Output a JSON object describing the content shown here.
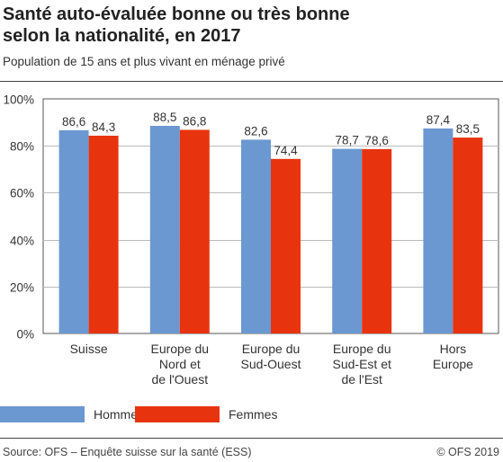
{
  "title_lines": [
    "Santé auto-évaluée bonne ou très bonne",
    "selon la nationalité, en 2017"
  ],
  "subtitle": "Population de 15 ans et plus vivant en ménage privé",
  "source": "Source: OFS – Enquête suisse sur la santé (ESS)",
  "copyright": "© OFS 2019",
  "colors": {
    "hommes": "#6b98d1",
    "femmes": "#e8340e",
    "plot_bg": "#ffffff",
    "grid": "#bbbbbb"
  },
  "chart_data": {
    "type": "bar",
    "categories": [
      [
        "Suisse"
      ],
      [
        "Europe du",
        "Nord et",
        "de l'Ouest"
      ],
      [
        "Europe du",
        "Sud-Ouest"
      ],
      [
        "Europe du",
        "Sud-Est et",
        "de l'Est"
      ],
      [
        "Hors",
        "Europe"
      ]
    ],
    "series": [
      {
        "name": "Hommes",
        "values": [
          86.6,
          88.5,
          82.6,
          78.7,
          87.4
        ],
        "labels": [
          "86,6",
          "88,5",
          "82,6",
          "78,7",
          "87,4"
        ]
      },
      {
        "name": "Femmes",
        "values": [
          84.3,
          86.8,
          74.4,
          78.6,
          83.5
        ],
        "labels": [
          "84,3",
          "86,8",
          "74,4",
          "78,6",
          "83,5"
        ]
      }
    ],
    "y_ticks": [
      0,
      20,
      40,
      60,
      80,
      100
    ],
    "y_tick_labels": [
      "0%",
      "20%",
      "40%",
      "60%",
      "80%",
      "100%"
    ],
    "ylim": [
      0,
      100
    ],
    "grid": true,
    "legend_position": "bottom"
  }
}
